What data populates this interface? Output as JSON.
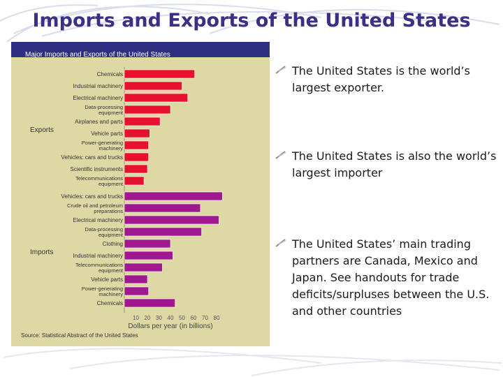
{
  "slide": {
    "title": "Imports and Exports of the United States",
    "bullets": [
      "The United States is the world’s largest exporter.",
      "The United States is also the world’s largest importer",
      "The United States’ main trading partners are Canada, Mexico and Japan.  See handouts for trade deficits/surpluses between the U.S. and other countries"
    ]
  },
  "colors": {
    "exports": "#e8102f",
    "imports": "#a0188f",
    "panel": "#ded8a4",
    "header": "#2e2f7e",
    "title": "#3b2f86"
  },
  "chart_data": {
    "type": "bar",
    "orientation": "horizontal",
    "title": "Major Imports and Exports of the United States",
    "xlabel": "Dollars per year (in billions)",
    "source": "Source: Statistical Abstract of the United States",
    "xlim": [
      0,
      90
    ],
    "xticks": [
      10,
      20,
      30,
      40,
      50,
      60,
      70,
      80
    ],
    "groups": [
      {
        "name": "Exports",
        "categories": [
          [
            "Chemicals"
          ],
          [
            "Industrial machinery"
          ],
          [
            "Electrical machinery"
          ],
          [
            "Data-processing",
            "equipment"
          ],
          [
            "Airplanes and parts"
          ],
          [
            "Vehicle parts"
          ],
          [
            "Power-generating",
            "machinery"
          ],
          [
            "Vehicles: cars and trucks"
          ],
          [
            "Scientific instruments"
          ],
          [
            "Telecommunications",
            "equipment"
          ]
        ],
        "values": [
          61,
          50,
          55,
          40,
          31,
          22,
          21,
          21,
          20,
          17
        ]
      },
      {
        "name": "Imports",
        "categories": [
          [
            "Vehicles: cars and trucks"
          ],
          [
            "Crude oil and petroleum",
            "preparations"
          ],
          [
            "Electrical machinery"
          ],
          [
            "Data-processing",
            "equipment"
          ],
          [
            "Clothing"
          ],
          [
            "Industrial machinery"
          ],
          [
            "Telecommunications",
            "equipment"
          ],
          [
            "Vehicle parts"
          ],
          [
            "Power-generating",
            "machinery"
          ],
          [
            "Chemicals"
          ]
        ],
        "values": [
          85,
          66,
          82,
          67,
          40,
          42,
          33,
          20,
          21,
          44
        ]
      }
    ]
  }
}
